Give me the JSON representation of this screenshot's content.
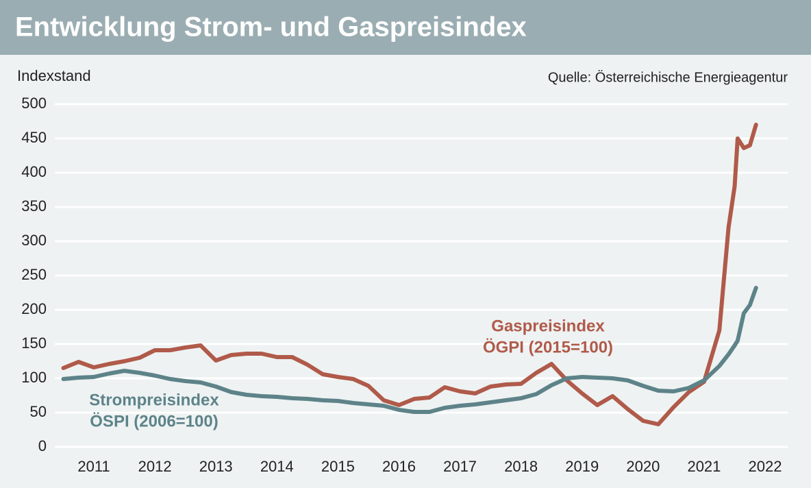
{
  "chart_data": {
    "type": "line",
    "title": "Entwicklung Strom- und Gaspreisindex",
    "y_label": "Indexstand",
    "source": "Quelle: Österreichische Energieagentur",
    "annotations": [
      "Gaspreisindex",
      "ÖGPI (2015=100)",
      "Strompreisindex",
      "ÖSPI (2006=100)"
    ],
    "x": [
      2010.5,
      2010.75,
      2011,
      2011.25,
      2011.5,
      2011.75,
      2012,
      2012.25,
      2012.5,
      2012.75,
      2013,
      2013.25,
      2013.5,
      2013.75,
      2014,
      2014.25,
      2014.5,
      2014.75,
      2015,
      2015.25,
      2015.5,
      2015.75,
      2016,
      2016.25,
      2016.5,
      2016.75,
      2017,
      2017.25,
      2017.5,
      2017.75,
      2018,
      2018.25,
      2018.5,
      2018.75,
      2019,
      2019.25,
      2019.5,
      2019.75,
      2020,
      2020.25,
      2020.5,
      2020.75,
      2021,
      2021.25,
      2021.4,
      2021.5,
      2021.55,
      2021.65,
      2021.75,
      2021.85
    ],
    "series": [
      {
        "name": "Gaspreisindex",
        "color": "#b05a4a",
        "values": [
          115,
          124,
          116,
          121,
          125,
          130,
          141,
          141,
          145,
          148,
          126,
          134,
          136,
          136,
          131,
          131,
          120,
          106,
          102,
          99,
          89,
          68,
          61,
          70,
          72,
          87,
          81,
          78,
          88,
          91,
          92,
          108,
          121,
          97,
          78,
          61,
          74,
          55,
          38,
          33,
          58,
          80,
          95,
          170,
          320,
          380,
          450,
          436,
          440,
          470
        ]
      },
      {
        "name": "Strompreisindex",
        "color": "#5d8389",
        "values": [
          99,
          101,
          102,
          107,
          111,
          108,
          104,
          99,
          96,
          94,
          88,
          80,
          76,
          74,
          73,
          71,
          70,
          68,
          67,
          64,
          62,
          60,
          54,
          51,
          51,
          57,
          60,
          62,
          65,
          68,
          71,
          77,
          90,
          100,
          102,
          101,
          100,
          97,
          89,
          82,
          81,
          86,
          97,
          118,
          135,
          148,
          155,
          195,
          207,
          232
        ]
      }
    ],
    "xlim": [
      2010.36,
      2022.37
    ],
    "xticks": [
      2011,
      2012,
      2013,
      2014,
      2015,
      2016,
      2017,
      2018,
      2019,
      2020,
      2021,
      2022
    ],
    "ylim": [
      0,
      500
    ],
    "yticks": [
      0,
      50,
      100,
      150,
      200,
      250,
      300,
      350,
      400,
      450,
      500
    ],
    "grid": true
  }
}
